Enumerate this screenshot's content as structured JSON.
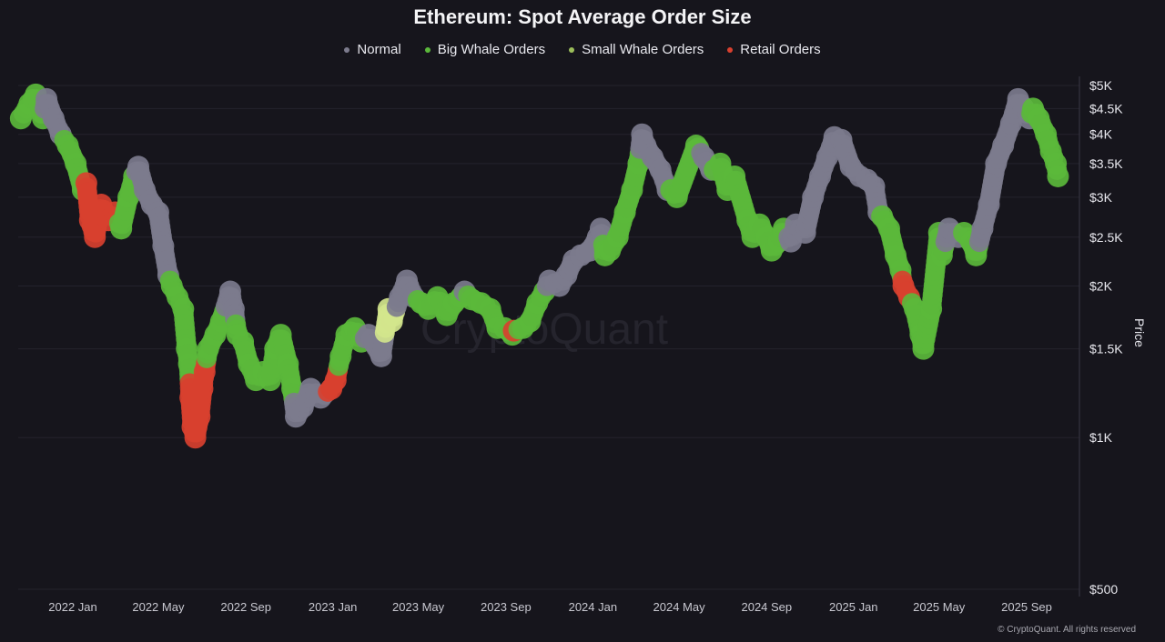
{
  "chart_data": {
    "type": "scatter",
    "title": "Ethereum: Spot Average Order Size",
    "ylabel": "Price",
    "xlabel": "",
    "y_scale": "log",
    "ylim": [
      500,
      5000
    ],
    "y_ticks": [
      {
        "value": 5000,
        "label": "$5K"
      },
      {
        "value": 4500,
        "label": "$4.5K"
      },
      {
        "value": 4000,
        "label": "$4K"
      },
      {
        "value": 3500,
        "label": "$3.5K"
      },
      {
        "value": 3000,
        "label": "$3K"
      },
      {
        "value": 2500,
        "label": "$2.5K"
      },
      {
        "value": 2000,
        "label": "$2K"
      },
      {
        "value": 1500,
        "label": "$1.5K"
      },
      {
        "value": 1000,
        "label": "$1K"
      },
      {
        "value": 500,
        "label": "$500"
      }
    ],
    "x_ticks": [
      {
        "value": "2022-01-01",
        "label": "2022 Jan"
      },
      {
        "value": "2022-05-01",
        "label": "2022 May"
      },
      {
        "value": "2022-09-01",
        "label": "2022 Sep"
      },
      {
        "value": "2023-01-01",
        "label": "2023 Jan"
      },
      {
        "value": "2023-05-01",
        "label": "2023 May"
      },
      {
        "value": "2023-09-01",
        "label": "2023 Sep"
      },
      {
        "value": "2024-01-01",
        "label": "2024 Jan"
      },
      {
        "value": "2024-05-01",
        "label": "2024 May"
      },
      {
        "value": "2024-09-01",
        "label": "2024 Sep"
      },
      {
        "value": "2025-01-01",
        "label": "2025 Jan"
      },
      {
        "value": "2025-05-01",
        "label": "2025 May"
      },
      {
        "value": "2025-09-01",
        "label": "2025 Sep"
      }
    ],
    "grid": true,
    "legend_position": "top-center",
    "series": [
      {
        "key": "N",
        "name": "Normal",
        "color": "#7c7b8d"
      },
      {
        "key": "B",
        "name": "Big Whale Orders",
        "color": "#5bb83b"
      },
      {
        "key": "S",
        "name": "Small Whale Orders",
        "color": "#d3e58c"
      },
      {
        "key": "R",
        "name": "Retail Orders",
        "color": "#d8402f"
      }
    ],
    "points": [
      [
        "2021-10-20",
        4300,
        "B"
      ],
      [
        "2021-11-01",
        4600,
        "B"
      ],
      [
        "2021-11-10",
        4800,
        "B"
      ],
      [
        "2021-11-20",
        4300,
        "B"
      ],
      [
        "2021-11-25",
        4700,
        "N"
      ],
      [
        "2021-12-05",
        4300,
        "N"
      ],
      [
        "2021-12-15",
        4000,
        "N"
      ],
      [
        "2021-12-25",
        3800,
        "B"
      ],
      [
        "2022-01-05",
        3500,
        "B"
      ],
      [
        "2022-01-15",
        3100,
        "B"
      ],
      [
        "2022-01-20",
        3200,
        "R"
      ],
      [
        "2022-01-25",
        2700,
        "R"
      ],
      [
        "2022-02-01",
        2500,
        "R"
      ],
      [
        "2022-02-10",
        2900,
        "R"
      ],
      [
        "2022-02-20",
        2700,
        "R"
      ],
      [
        "2022-03-01",
        2800,
        "R"
      ],
      [
        "2022-03-10",
        2600,
        "B"
      ],
      [
        "2022-03-20",
        3000,
        "B"
      ],
      [
        "2022-03-28",
        3300,
        "B"
      ],
      [
        "2022-04-03",
        3450,
        "N"
      ],
      [
        "2022-04-12",
        3100,
        "N"
      ],
      [
        "2022-04-22",
        2900,
        "N"
      ],
      [
        "2022-05-01",
        2800,
        "N"
      ],
      [
        "2022-05-08",
        2400,
        "N"
      ],
      [
        "2022-05-15",
        2100,
        "N"
      ],
      [
        "2022-05-20",
        2000,
        "B"
      ],
      [
        "2022-05-28",
        1900,
        "B"
      ],
      [
        "2022-06-05",
        1800,
        "B"
      ],
      [
        "2022-06-10",
        1500,
        "B"
      ],
      [
        "2022-06-13",
        1400,
        "B"
      ],
      [
        "2022-06-15",
        1200,
        "R"
      ],
      [
        "2022-06-18",
        1050,
        "R"
      ],
      [
        "2022-06-22",
        1000,
        "R"
      ],
      [
        "2022-06-28",
        1100,
        "R"
      ],
      [
        "2022-07-02",
        1250,
        "R"
      ],
      [
        "2022-07-05",
        1350,
        "R"
      ],
      [
        "2022-07-10",
        1500,
        "B"
      ],
      [
        "2022-07-20",
        1600,
        "B"
      ],
      [
        "2022-07-28",
        1700,
        "B"
      ],
      [
        "2022-08-10",
        1950,
        "N"
      ],
      [
        "2022-08-15",
        1800,
        "N"
      ],
      [
        "2022-08-20",
        1600,
        "B"
      ],
      [
        "2022-08-28",
        1550,
        "B"
      ],
      [
        "2022-09-05",
        1400,
        "B"
      ],
      [
        "2022-09-15",
        1300,
        "B"
      ],
      [
        "2022-09-25",
        1350,
        "B"
      ],
      [
        "2022-10-05",
        1300,
        "B"
      ],
      [
        "2022-10-12",
        1500,
        "B"
      ],
      [
        "2022-10-20",
        1600,
        "B"
      ],
      [
        "2022-10-30",
        1400,
        "B"
      ],
      [
        "2022-11-05",
        1250,
        "B"
      ],
      [
        "2022-11-10",
        1100,
        "N"
      ],
      [
        "2022-11-20",
        1150,
        "N"
      ],
      [
        "2022-12-01",
        1250,
        "N"
      ],
      [
        "2022-12-15",
        1200,
        "N"
      ],
      [
        "2022-12-30",
        1250,
        "R"
      ],
      [
        "2023-01-05",
        1300,
        "R"
      ],
      [
        "2023-01-12",
        1450,
        "B"
      ],
      [
        "2023-01-20",
        1600,
        "B"
      ],
      [
        "2023-02-01",
        1650,
        "B"
      ],
      [
        "2023-02-10",
        1550,
        "B"
      ],
      [
        "2023-02-20",
        1600,
        "N"
      ],
      [
        "2023-03-10",
        1450,
        "N"
      ],
      [
        "2023-03-20",
        1800,
        "S"
      ],
      [
        "2023-03-25",
        1700,
        "S"
      ],
      [
        "2023-04-05",
        1900,
        "N"
      ],
      [
        "2023-04-15",
        2050,
        "N"
      ],
      [
        "2023-04-25",
        1900,
        "N"
      ],
      [
        "2023-05-05",
        1850,
        "B"
      ],
      [
        "2023-05-15",
        1800,
        "B"
      ],
      [
        "2023-05-28",
        1900,
        "B"
      ],
      [
        "2023-06-10",
        1750,
        "B"
      ],
      [
        "2023-06-20",
        1850,
        "B"
      ],
      [
        "2023-06-30",
        1900,
        "B"
      ],
      [
        "2023-07-05",
        1950,
        "N"
      ],
      [
        "2023-07-15",
        1880,
        "B"
      ],
      [
        "2023-07-28",
        1850,
        "B"
      ],
      [
        "2023-08-10",
        1800,
        "B"
      ],
      [
        "2023-08-20",
        1650,
        "B"
      ],
      [
        "2023-08-30",
        1650,
        "B"
      ],
      [
        "2023-09-10",
        1600,
        "B"
      ],
      [
        "2023-09-12",
        1630,
        "R"
      ],
      [
        "2023-09-25",
        1650,
        "B"
      ],
      [
        "2023-10-05",
        1700,
        "B"
      ],
      [
        "2023-10-15",
        1850,
        "B"
      ],
      [
        "2023-10-25",
        1950,
        "B"
      ],
      [
        "2023-11-01",
        2050,
        "N"
      ],
      [
        "2023-11-15",
        2000,
        "N"
      ],
      [
        "2023-11-25",
        2100,
        "N"
      ],
      [
        "2023-12-05",
        2250,
        "N"
      ],
      [
        "2023-12-15",
        2300,
        "N"
      ],
      [
        "2023-12-28",
        2350,
        "N"
      ],
      [
        "2024-01-08",
        2500,
        "N"
      ],
      [
        "2024-01-12",
        2600,
        "N"
      ],
      [
        "2024-01-18",
        2300,
        "B"
      ],
      [
        "2024-01-25",
        2350,
        "B"
      ],
      [
        "2024-02-05",
        2500,
        "B"
      ],
      [
        "2024-02-15",
        2800,
        "B"
      ],
      [
        "2024-02-25",
        3100,
        "B"
      ],
      [
        "2024-03-05",
        3500,
        "B"
      ],
      [
        "2024-03-10",
        4000,
        "N"
      ],
      [
        "2024-03-15",
        3800,
        "N"
      ],
      [
        "2024-03-25",
        3600,
        "N"
      ],
      [
        "2024-04-05",
        3400,
        "N"
      ],
      [
        "2024-04-15",
        3100,
        "N"
      ],
      [
        "2024-04-20",
        3100,
        "B"
      ],
      [
        "2024-04-28",
        3000,
        "B"
      ],
      [
        "2024-05-25",
        3800,
        "B"
      ],
      [
        "2024-05-28",
        3750,
        "B"
      ],
      [
        "2024-06-05",
        3600,
        "N"
      ],
      [
        "2024-06-15",
        3400,
        "N"
      ],
      [
        "2024-06-20",
        3400,
        "B"
      ],
      [
        "2024-06-28",
        3500,
        "B"
      ],
      [
        "2024-07-08",
        3100,
        "B"
      ],
      [
        "2024-07-18",
        3300,
        "B"
      ],
      [
        "2024-08-05",
        2700,
        "B"
      ],
      [
        "2024-08-12",
        2500,
        "B"
      ],
      [
        "2024-08-22",
        2650,
        "B"
      ],
      [
        "2024-09-01",
        2500,
        "B"
      ],
      [
        "2024-09-08",
        2350,
        "B"
      ],
      [
        "2024-09-18",
        2450,
        "B"
      ],
      [
        "2024-09-25",
        2600,
        "B"
      ],
      [
        "2024-10-05",
        2450,
        "N"
      ],
      [
        "2024-10-12",
        2650,
        "N"
      ],
      [
        "2024-10-25",
        2550,
        "N"
      ],
      [
        "2024-11-05",
        3000,
        "N"
      ],
      [
        "2024-11-15",
        3300,
        "N"
      ],
      [
        "2024-11-25",
        3600,
        "N"
      ],
      [
        "2024-12-05",
        3950,
        "N"
      ],
      [
        "2024-12-15",
        3900,
        "N"
      ],
      [
        "2024-12-28",
        3450,
        "N"
      ],
      [
        "2025-01-10",
        3300,
        "N"
      ],
      [
        "2025-01-20",
        3250,
        "N"
      ],
      [
        "2025-01-30",
        3150,
        "N"
      ],
      [
        "2025-02-05",
        2800,
        "N"
      ],
      [
        "2025-02-10",
        2750,
        "B"
      ],
      [
        "2025-02-20",
        2600,
        "B"
      ],
      [
        "2025-03-01",
        2300,
        "B"
      ],
      [
        "2025-03-08",
        2150,
        "B"
      ],
      [
        "2025-03-12",
        2000,
        "R"
      ],
      [
        "2025-03-20",
        1900,
        "R"
      ],
      [
        "2025-03-28",
        1800,
        "B"
      ],
      [
        "2025-04-05",
        1600,
        "B"
      ],
      [
        "2025-04-09",
        1500,
        "B"
      ],
      [
        "2025-04-20",
        1800,
        "B"
      ],
      [
        "2025-05-01",
        2550,
        "B"
      ],
      [
        "2025-05-05",
        2300,
        "B"
      ],
      [
        "2025-05-15",
        2600,
        "N"
      ],
      [
        "2025-05-28",
        2500,
        "N"
      ],
      [
        "2025-06-05",
        2550,
        "B"
      ],
      [
        "2025-06-15",
        2450,
        "B"
      ],
      [
        "2025-06-22",
        2300,
        "B"
      ],
      [
        "2025-07-01",
        2600,
        "N"
      ],
      [
        "2025-07-10",
        2900,
        "N"
      ],
      [
        "2025-07-20",
        3500,
        "N"
      ],
      [
        "2025-07-30",
        3800,
        "N"
      ],
      [
        "2025-08-10",
        4200,
        "N"
      ],
      [
        "2025-08-20",
        4700,
        "N"
      ],
      [
        "2025-08-28",
        4500,
        "N"
      ],
      [
        "2025-09-05",
        4300,
        "N"
      ],
      [
        "2025-09-10",
        4500,
        "B"
      ],
      [
        "2025-09-18",
        4300,
        "B"
      ],
      [
        "2025-09-28",
        4000,
        "B"
      ],
      [
        "2025-10-05",
        3700,
        "B"
      ],
      [
        "2025-10-12",
        3500,
        "B"
      ],
      [
        "2025-10-15",
        3300,
        "B"
      ]
    ]
  },
  "watermark": "CryptoQuant",
  "copyright": "© CryptoQuant. All rights reserved"
}
